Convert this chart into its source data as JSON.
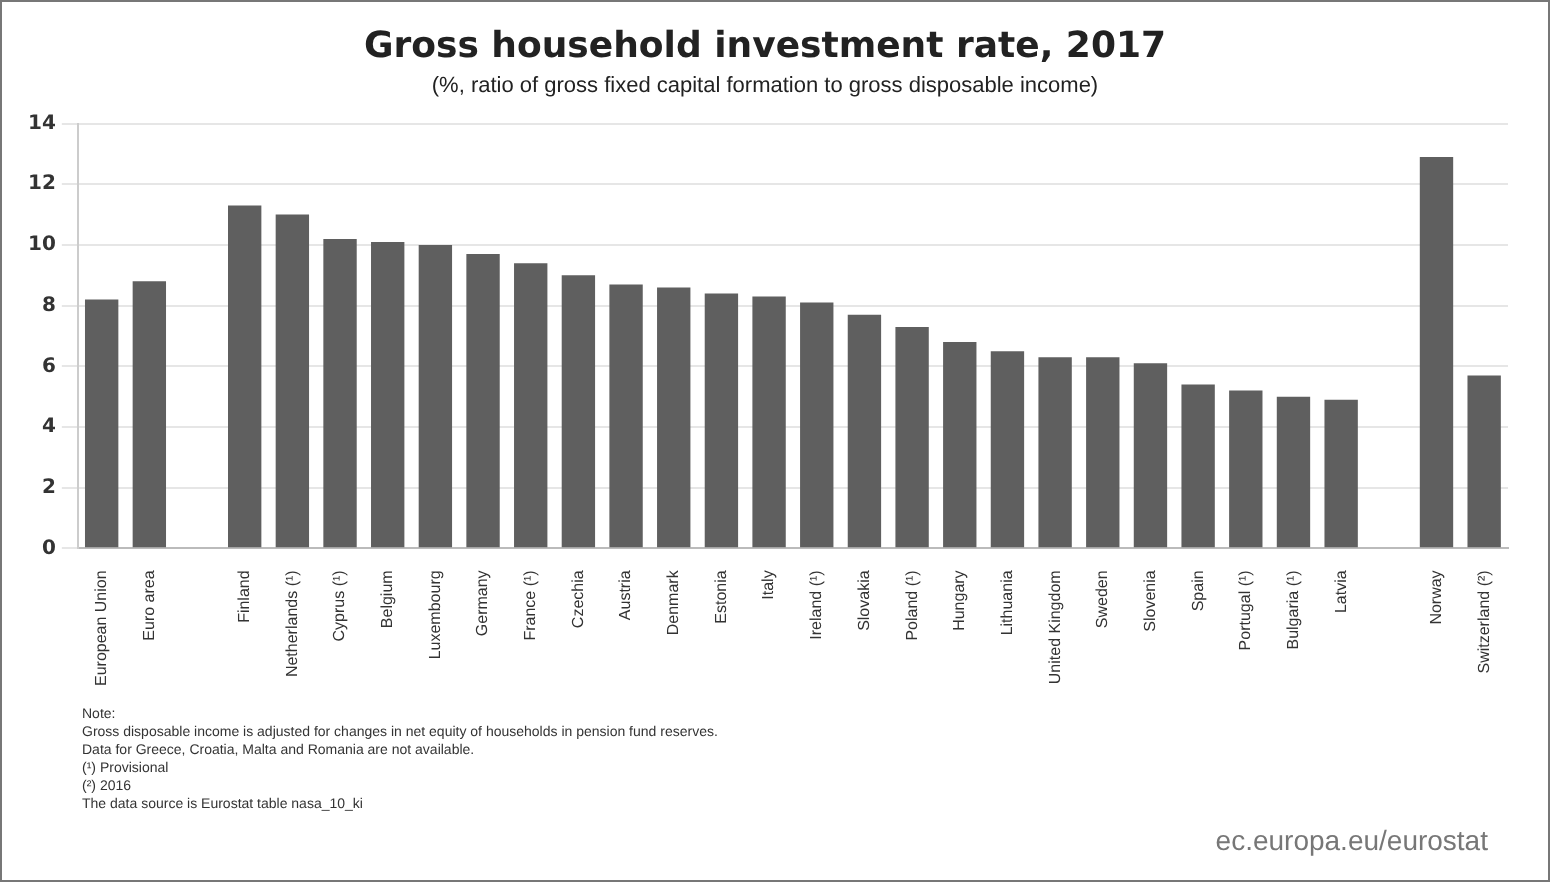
{
  "chart_data": {
    "type": "bar",
    "title": "Gross household investment rate, 2017",
    "subtitle": "(%, ratio of gross fixed capital formation to gross disposable income)",
    "categories": [
      "European Union",
      "Euro area",
      null,
      "Finland",
      "Netherlands (¹)",
      "Cyprus (¹)",
      "Belgium",
      "Luxembourg",
      "Germany",
      "France (¹)",
      "Czechia",
      "Austria",
      "Denmark",
      "Estonia",
      "Italy",
      "Ireland (¹)",
      "Slovakia",
      "Poland (¹)",
      "Hungary",
      "Lithuania",
      "United Kingdom",
      "Sweden",
      "Slovenia",
      "Spain",
      "Portugal (¹)",
      "Bulgaria (¹)",
      "Latvia",
      null,
      "Norway",
      "Switzerland (²)"
    ],
    "values": [
      8.2,
      8.8,
      null,
      11.3,
      11.0,
      10.2,
      10.1,
      10.0,
      9.7,
      9.4,
      9.0,
      8.7,
      8.6,
      8.4,
      8.3,
      8.1,
      7.7,
      7.3,
      6.8,
      6.5,
      6.3,
      6.3,
      6.1,
      5.4,
      5.2,
      5.0,
      4.9,
      null,
      12.9,
      5.7
    ],
    "color": "#5f5f5f",
    "ylim": [
      0,
      14
    ],
    "yticks": [
      0,
      2,
      4,
      6,
      8,
      10,
      12,
      14
    ],
    "grid": "y",
    "annotations": [
      "Note:",
      "Gross disposable income is adjusted for changes in net equity of households in pension fund reserves.",
      "Data for Greece, Croatia, Malta and Romania are not available.",
      "(¹) Provisional",
      "(²) 2016",
      "The data source is Eurostat table nasa_10_ki",
      "ec.europa.eu/eurostat"
    ]
  }
}
